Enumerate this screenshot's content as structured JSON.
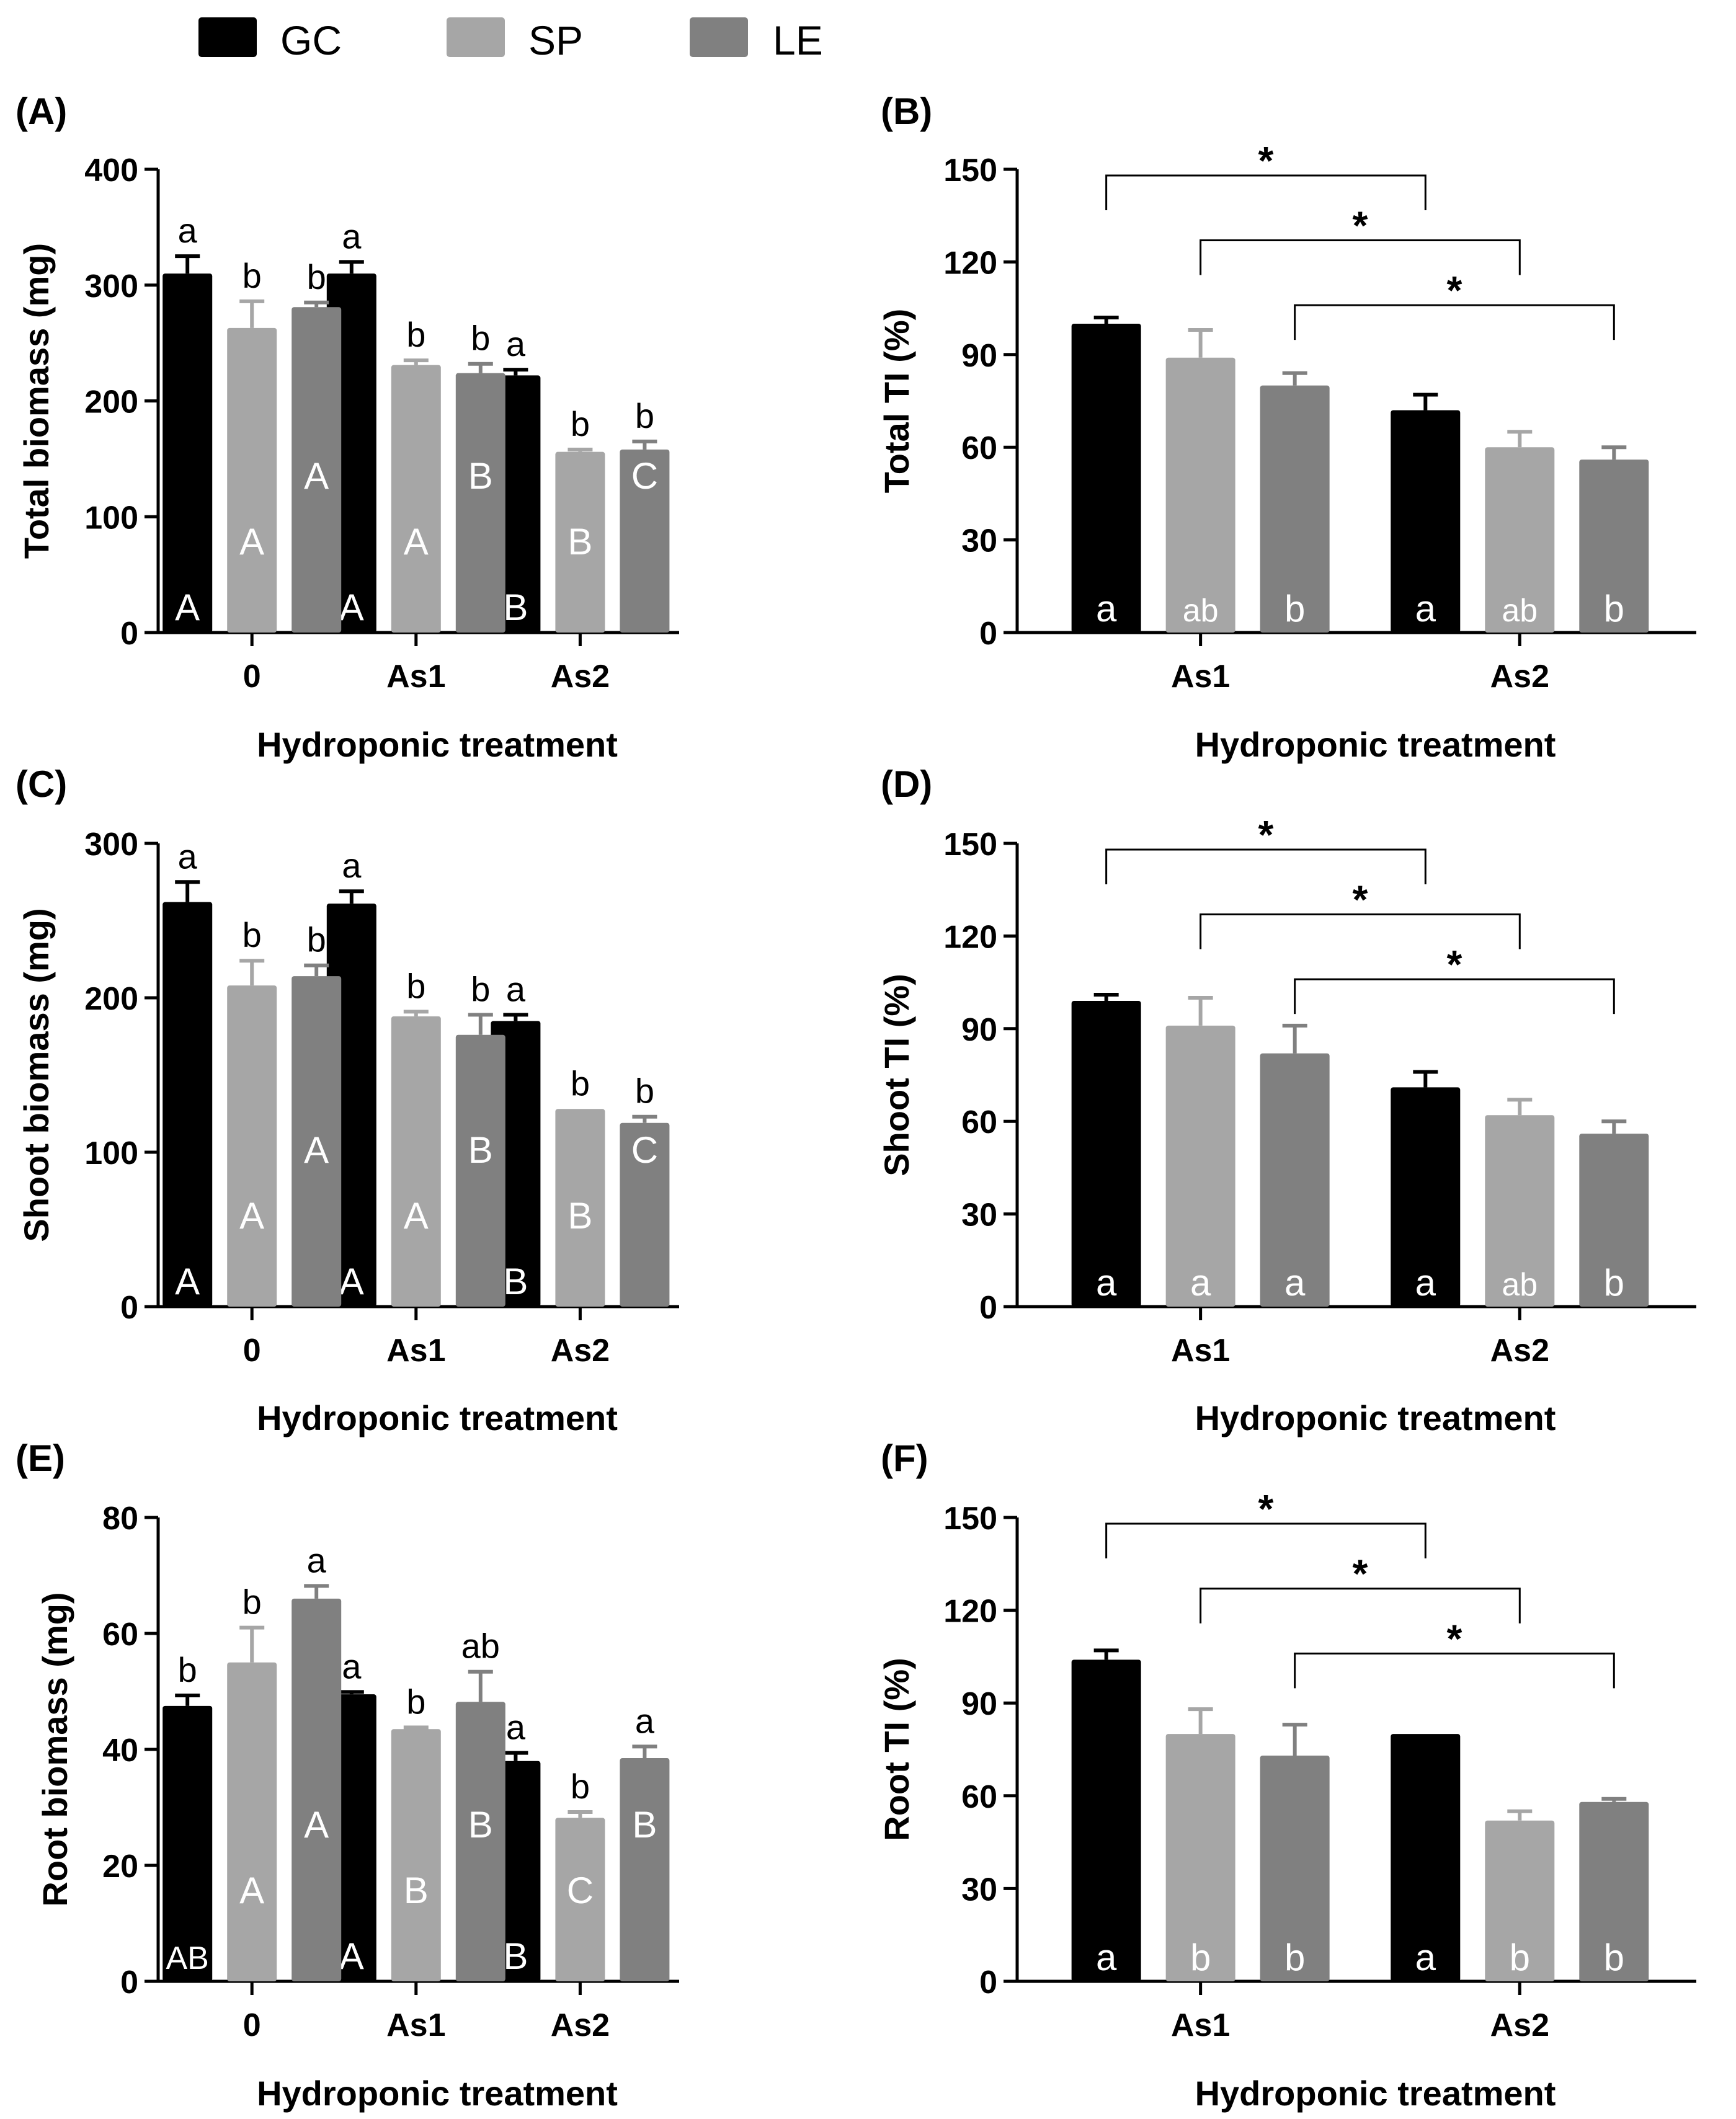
{
  "legend": {
    "entries": [
      {
        "label": "GC",
        "color": "#000000"
      },
      {
        "label": "SP",
        "color": "#a6a6a6"
      },
      {
        "label": "LE",
        "color": "#808080"
      }
    ]
  },
  "chart_data": [
    {
      "panel": "(A)",
      "type": "bar",
      "title": "",
      "xlabel": "Hydroponic treatment",
      "ylabel": "Total biomass (mg)",
      "ylim": [
        0,
        400
      ],
      "yticks": [
        0,
        100,
        200,
        300,
        400
      ],
      "categories": [
        "0",
        "As1",
        "As2"
      ],
      "series": [
        {
          "name": "GC",
          "values": [
            310,
            310,
            222
          ],
          "errors": [
            15,
            10,
            5
          ],
          "top_letters": [
            "a",
            "a",
            "a"
          ],
          "inner_letters": [
            "A",
            "A",
            "B"
          ]
        },
        {
          "name": "SP",
          "values": [
            263,
            231,
            156
          ],
          "errors": [
            23,
            4,
            2
          ],
          "top_letters": [
            "b",
            "b",
            "b"
          ],
          "inner_letters": [
            "A",
            "A",
            "B"
          ]
        },
        {
          "name": "LE",
          "values": [
            281,
            224,
            158
          ],
          "errors": [
            4,
            8,
            7
          ],
          "top_letters": [
            "b",
            "b",
            "b"
          ],
          "inner_letters": [
            "A",
            "B",
            "C"
          ]
        }
      ]
    },
    {
      "panel": "(B)",
      "type": "bar",
      "title": "",
      "xlabel": "Hydroponic treatment",
      "ylabel": "Total TI (%)",
      "ylim": [
        0,
        150
      ],
      "yticks": [
        0,
        30,
        60,
        90,
        120,
        150
      ],
      "categories": [
        "As1",
        "As2"
      ],
      "series": [
        {
          "name": "GC",
          "values": [
            100,
            72
          ],
          "errors": [
            2,
            5
          ],
          "inner_letters": [
            "a",
            "a"
          ]
        },
        {
          "name": "SP",
          "values": [
            89,
            60
          ],
          "errors": [
            9,
            5
          ],
          "inner_letters": [
            "ab",
            "ab"
          ]
        },
        {
          "name": "LE",
          "values": [
            80,
            56
          ],
          "errors": [
            4,
            4
          ],
          "inner_letters": [
            "b",
            "b"
          ]
        }
      ],
      "significance": [
        {
          "from_series": "GC",
          "label": "*",
          "bracket_y": 148
        },
        {
          "from_series": "SP",
          "label": "*",
          "bracket_y": 127
        },
        {
          "from_series": "LE",
          "label": "*",
          "bracket_y": 106
        }
      ]
    },
    {
      "panel": "(C)",
      "type": "bar",
      "title": "",
      "xlabel": "Hydroponic treatment",
      "ylabel": "Shoot biomass (mg)",
      "ylim": [
        0,
        300
      ],
      "yticks": [
        0,
        100,
        200,
        300
      ],
      "categories": [
        "0",
        "As1",
        "As2"
      ],
      "series": [
        {
          "name": "GC",
          "values": [
            262,
            261,
            185
          ],
          "errors": [
            13,
            8,
            4
          ],
          "top_letters": [
            "a",
            "a",
            "a"
          ],
          "inner_letters": [
            "A",
            "A",
            "B"
          ]
        },
        {
          "name": "SP",
          "values": [
            208,
            188,
            128
          ],
          "errors": [
            16,
            3,
            0
          ],
          "top_letters": [
            "b",
            "b",
            "b"
          ],
          "inner_letters": [
            "A",
            "A",
            "B"
          ]
        },
        {
          "name": "LE",
          "values": [
            214,
            176,
            119
          ],
          "errors": [
            7,
            13,
            4
          ],
          "top_letters": [
            "b",
            "b",
            "b"
          ],
          "inner_letters": [
            "A",
            "B",
            "C"
          ]
        }
      ]
    },
    {
      "panel": "(D)",
      "type": "bar",
      "title": "",
      "xlabel": "Hydroponic treatment",
      "ylabel": "Shoot TI (%)",
      "ylim": [
        0,
        150
      ],
      "yticks": [
        0,
        30,
        60,
        90,
        120,
        150
      ],
      "categories": [
        "As1",
        "As2"
      ],
      "series": [
        {
          "name": "GC",
          "values": [
            99,
            71
          ],
          "errors": [
            2,
            5
          ],
          "inner_letters": [
            "a",
            "a"
          ]
        },
        {
          "name": "SP",
          "values": [
            91,
            62
          ],
          "errors": [
            9,
            5
          ],
          "inner_letters": [
            "a",
            "ab"
          ]
        },
        {
          "name": "LE",
          "values": [
            82,
            56
          ],
          "errors": [
            9,
            4
          ],
          "inner_letters": [
            "a",
            "b"
          ]
        }
      ],
      "significance": [
        {
          "from_series": "GC",
          "label": "*",
          "bracket_y": 148
        },
        {
          "from_series": "SP",
          "label": "*",
          "bracket_y": 127
        },
        {
          "from_series": "LE",
          "label": "*",
          "bracket_y": 106
        }
      ]
    },
    {
      "panel": "(E)",
      "type": "bar",
      "title": "",
      "xlabel": "Hydroponic treatment",
      "ylabel": "Root biomass (mg)",
      "ylim": [
        0,
        80
      ],
      "yticks": [
        0,
        20,
        40,
        60,
        80
      ],
      "categories": [
        "0",
        "As1",
        "As2"
      ],
      "series": [
        {
          "name": "GC",
          "values": [
            47.5,
            49.5,
            38
          ],
          "errors": [
            1.8,
            0.4,
            1.4
          ],
          "top_letters": [
            "b",
            "a",
            "a"
          ],
          "inner_letters": [
            "AB",
            "A",
            "B"
          ]
        },
        {
          "name": "SP",
          "values": [
            55,
            43.5,
            28.2
          ],
          "errors": [
            6,
            0.3,
            1
          ],
          "top_letters": [
            "b",
            "b",
            "b"
          ],
          "inner_letters": [
            "A",
            "B",
            "C"
          ]
        },
        {
          "name": "LE",
          "values": [
            66,
            48.2,
            38.5
          ],
          "errors": [
            2.2,
            5.2,
            2
          ],
          "top_letters": [
            "a",
            "ab",
            "a"
          ],
          "inner_letters": [
            "A",
            "B",
            "B"
          ]
        }
      ]
    },
    {
      "panel": "(F)",
      "type": "bar",
      "title": "",
      "xlabel": "Hydroponic treatment",
      "ylabel": "Root TI (%)",
      "ylim": [
        0,
        150
      ],
      "yticks": [
        0,
        30,
        60,
        90,
        120,
        150
      ],
      "categories": [
        "As1",
        "As2"
      ],
      "series": [
        {
          "name": "GC",
          "values": [
            104,
            80
          ],
          "errors": [
            3,
            0
          ],
          "inner_letters": [
            "a",
            "a"
          ]
        },
        {
          "name": "SP",
          "values": [
            80,
            52
          ],
          "errors": [
            8,
            3
          ],
          "inner_letters": [
            "b",
            "b"
          ]
        },
        {
          "name": "LE",
          "values": [
            73,
            58
          ],
          "errors": [
            10,
            1
          ],
          "inner_letters": [
            "b",
            "b"
          ]
        }
      ],
      "significance": [
        {
          "from_series": "GC",
          "label": "*",
          "bracket_y": 148
        },
        {
          "from_series": "SP",
          "label": "*",
          "bracket_y": 127
        },
        {
          "from_series": "LE",
          "label": "*",
          "bracket_y": 106
        }
      ]
    }
  ]
}
